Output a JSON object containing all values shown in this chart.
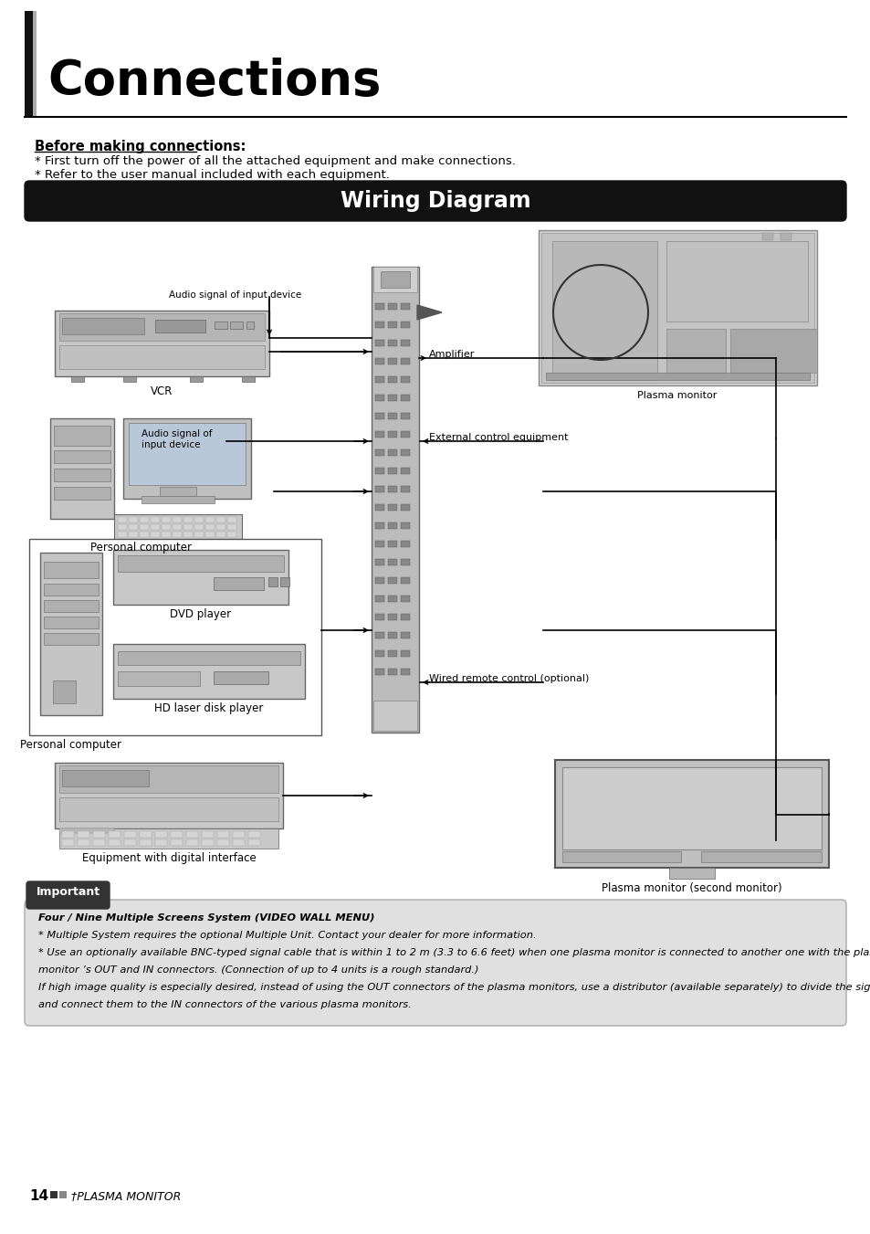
{
  "page_bg": "#ffffff",
  "title_bar_bg": "#111111",
  "title_text": "Wiring Diagram",
  "title_text_color": "#ffffff",
  "title_fontsize": 17,
  "main_title": "Connections",
  "main_title_color": "#000000",
  "main_title_fontsize": 38,
  "section_title": "Before making connections:",
  "section_title_fontsize": 10.5,
  "bullet1": "* First turn off the power of all the attached equipment and make connections.",
  "bullet2": "* Refer to the user manual included with each equipment.",
  "bullet_fontsize": 9.5,
  "important_label": "Important",
  "important_bg": "#333333",
  "important_text_color": "#ffffff",
  "important_box_bg": "#e0e0e0",
  "important_text_line1": "Four / Nine Multiple Screens System (VIDEO WALL MENU)",
  "important_text_line2": "* Multiple System requires the optional Multiple Unit. Contact your dealer for more information.",
  "important_text_line3": "* Use an optionally available BNC-typed signal cable that is within 1 to 2 m (3.3 to 6.6 feet) when one plasma monitor is connected to another one with the plasma",
  "important_text_line4": "monitor ’s OUT and IN connectors. (Connection of up to 4 units is a rough standard.)",
  "important_text_line5": "If high image quality is especially desired, instead of using the OUT connectors of the plasma monitors, use a distributor (available separately) to divide the signals",
  "important_text_line6": "and connect them to the IN connectors of the various plasma monitors.",
  "footer_num": "14",
  "footer_sub": "†PLASMA MONITOR",
  "labels": {
    "vcr": "VCR",
    "personal_computer": "Personal computer",
    "personal_computer2": "Personal computer",
    "dvd_player": "DVD player",
    "hd_laser": "HD laser disk player",
    "digital_interface": "Equipment with digital interface",
    "plasma_monitor": "Plasma monitor",
    "plasma_monitor2": "Plasma monitor (second monitor)",
    "amplifier": "Amplifier",
    "external_control": "External control equipment",
    "wired_remote": "Wired remote control (optional)",
    "audio_signal1": "Audio signal of input device",
    "audio_signal2": "Audio signal of\ninput device"
  }
}
